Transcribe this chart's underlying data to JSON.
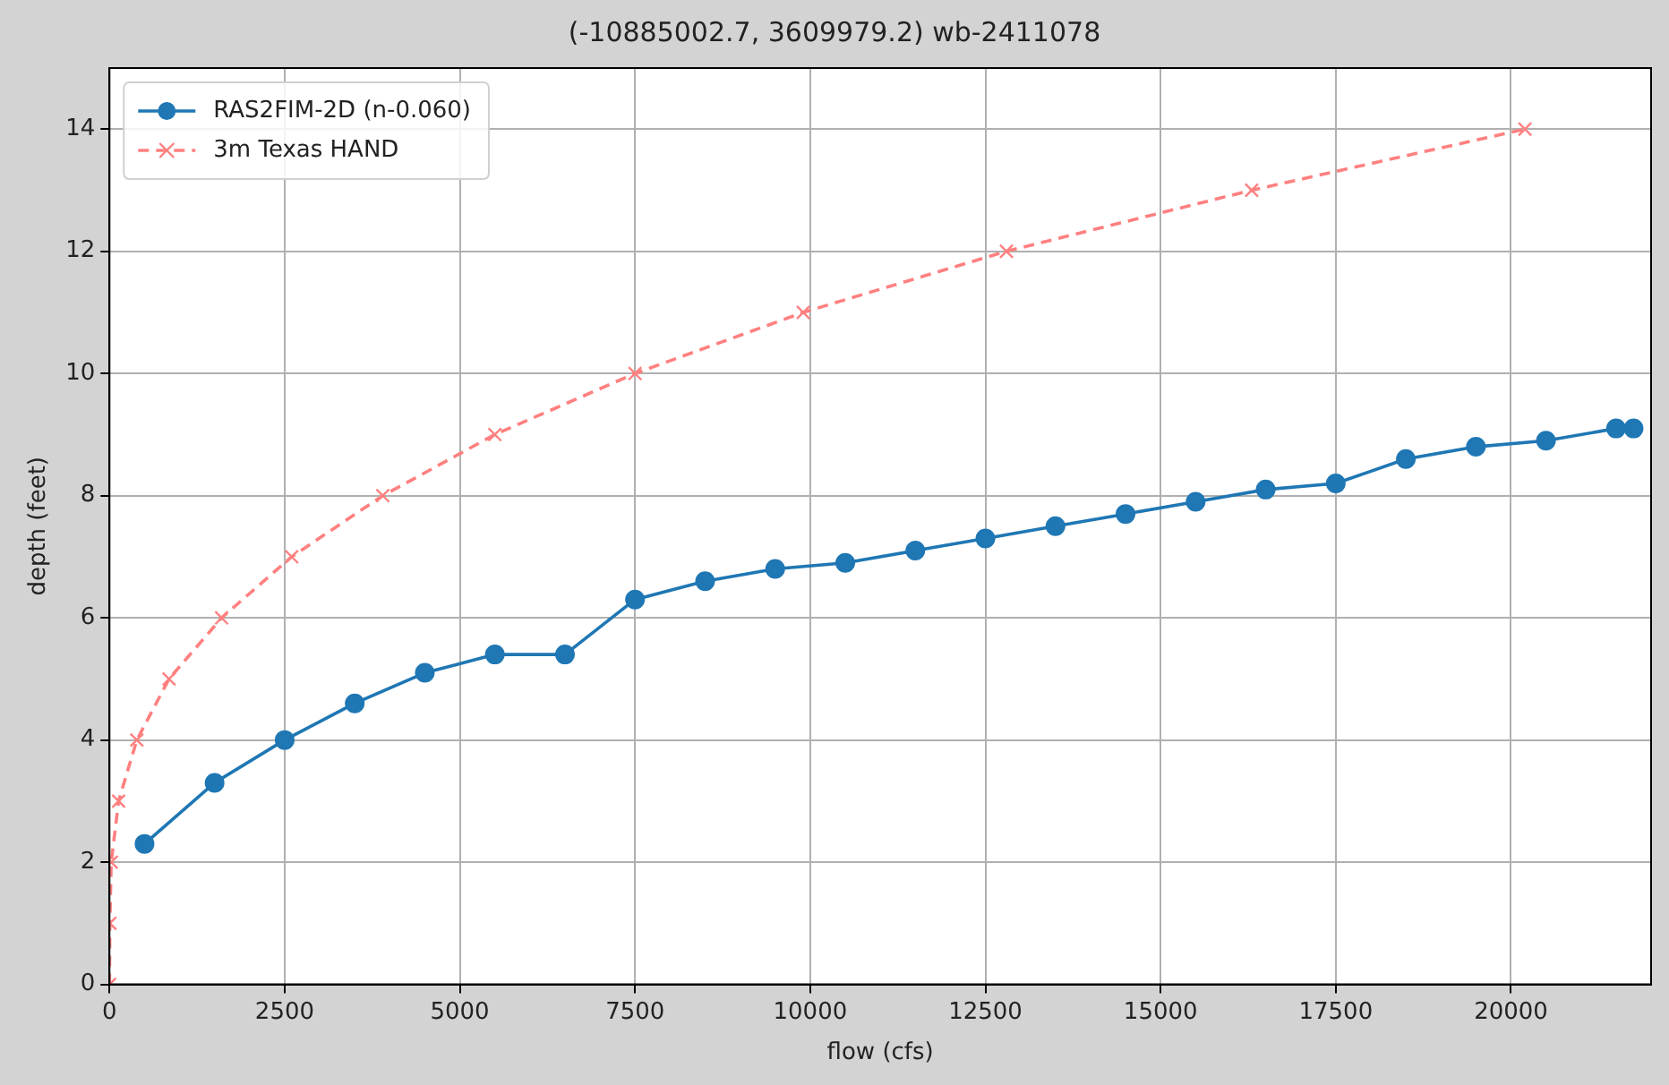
{
  "chart_data": {
    "type": "line",
    "title": "(-10885002.7, 3609979.2) wb-2411078",
    "xlabel": "flow (cfs)",
    "ylabel": "depth (feet)",
    "xlim": [
      0,
      22000
    ],
    "xticks": [
      0,
      2500,
      5000,
      7500,
      10000,
      12500,
      15000,
      17500,
      20000
    ],
    "ylim": [
      0,
      15
    ],
    "yticks": [
      0,
      2,
      4,
      6,
      8,
      10,
      12,
      14
    ],
    "grid": true,
    "legend": "top left",
    "series": [
      {
        "name": "RAS2FIM-2D (n-0.060)",
        "color": "#1f77b4",
        "marker": "circle",
        "line_style": "solid",
        "x": [
          500,
          1500,
          2500,
          3500,
          4500,
          5500,
          6500,
          7500,
          8500,
          9500,
          10500,
          11500,
          12500,
          13500,
          14500,
          15500,
          16500,
          17500,
          18500,
          19500,
          20500,
          21500,
          21750
        ],
        "values": [
          2.3,
          3.3,
          4.0,
          4.6,
          5.1,
          5.4,
          5.4,
          6.3,
          6.6,
          6.8,
          6.9,
          7.1,
          7.3,
          7.5,
          7.7,
          7.9,
          8.1,
          8.2,
          8.6,
          8.8,
          8.9,
          9.1,
          9.1
        ]
      },
      {
        "name": "3m Texas HAND",
        "color": "#ff8080",
        "marker": "cross",
        "line_style": "dashed",
        "x": [
          0,
          5,
          25,
          130,
          390,
          850,
          1600,
          2600,
          3900,
          5500,
          7500,
          9900,
          12800,
          16300,
          20200
        ],
        "values": [
          0,
          1,
          2,
          3,
          4,
          5,
          6,
          7,
          8,
          9,
          10,
          11,
          12,
          13,
          14
        ]
      }
    ]
  }
}
